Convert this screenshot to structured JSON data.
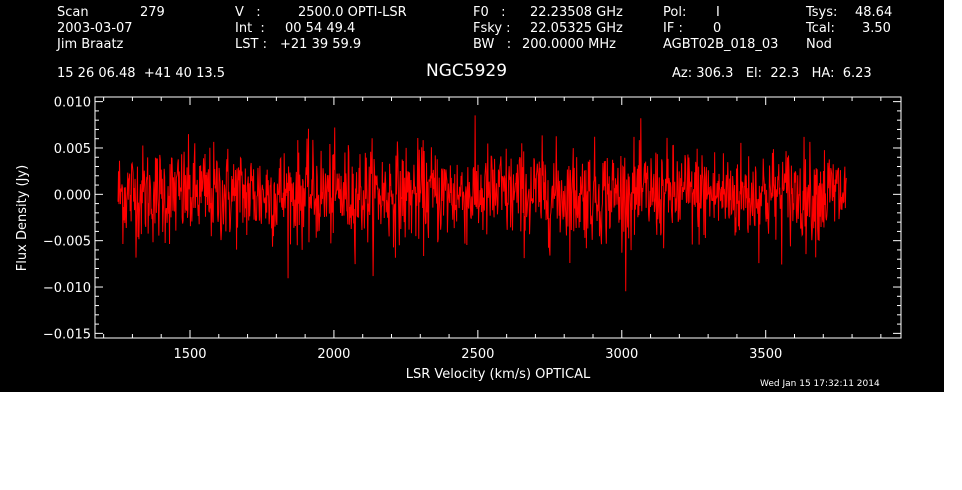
{
  "header": {
    "col1": {
      "scan_label": "Scan",
      "scan_value": "279",
      "date": "2003-03-07",
      "observer": "Jim Braatz"
    },
    "col2": {
      "v_label": "V   :",
      "v_value": "2500.0 OPTI-LSR",
      "int_label": "Int  :",
      "int_value": "00 54 49.4",
      "lst_label": "LST :",
      "lst_value": "+21 39 59.9"
    },
    "col3": {
      "f0_label": "F0   :",
      "f0_value": "22.23508 GHz",
      "fsky_label": "Fsky :",
      "fsky_value": "22.05325 GHz",
      "bw_label": "BW   :",
      "bw_value": "200.0000 MHz"
    },
    "col4": {
      "pol_label": "Pol:",
      "pol_value": "I",
      "if_label": "IF :",
      "if_value": "0",
      "project": "AGBT02B_018_03"
    },
    "col5": {
      "tsys_label": "Tsys:",
      "tsys_value": "48.64",
      "tcal_label": "Tcal:",
      "tcal_value": "3.50",
      "mode": "Nod"
    },
    "coords": "15 26 06.48  +41 40 13.5",
    "source": "NGC5929",
    "az_el_ha": "Az: 306.3   El:  22.3   HA:  6.23"
  },
  "footer": {
    "timestamp": "Wed Jan 15 17:32:11 2014"
  },
  "colors": {
    "background": "#000000",
    "axes": "#ffffff",
    "series": "#ff0000"
  },
  "chart_data": {
    "type": "line",
    "title": "NGC5929",
    "xlabel": "LSR Velocity (km/s) OPTICAL",
    "ylabel": "Flux Density (Jy)",
    "xlim": [
      1170,
      3970
    ],
    "ylim": [
      -0.0155,
      0.0105
    ],
    "x_ticks": [
      1500,
      2000,
      2500,
      3000,
      3500
    ],
    "x_tick_labels": [
      "1500",
      "2000",
      "2500",
      "3000",
      "3500"
    ],
    "y_ticks": [
      -0.015,
      -0.01,
      -0.005,
      0.0,
      0.005,
      0.01
    ],
    "y_tick_labels": [
      "−0.015",
      "−0.010",
      "−0.005",
      "0.000",
      "0.005",
      "0.010"
    ],
    "grid": false,
    "series": [
      {
        "x_start": 1250,
        "x_end": 3780,
        "points": 1500,
        "mean": 0.0,
        "std": 0.0026,
        "min": -0.011,
        "max": 0.0098
      }
    ]
  }
}
